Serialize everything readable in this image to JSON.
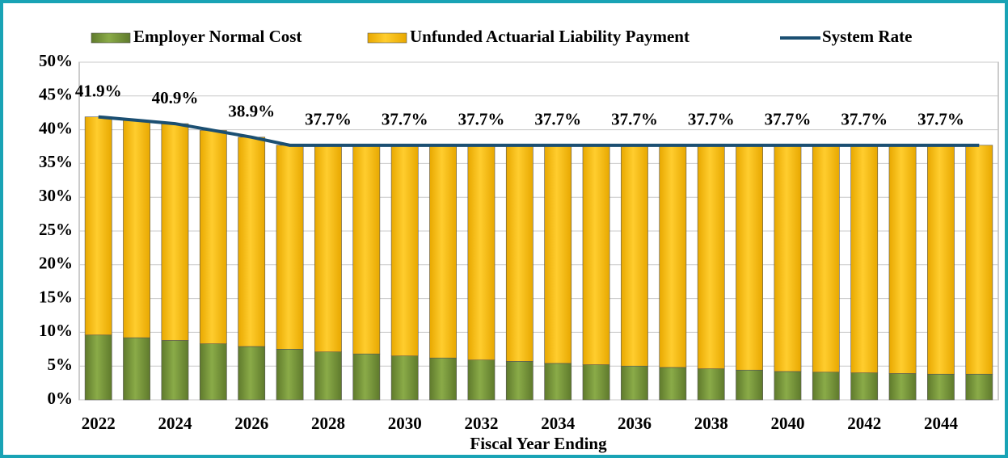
{
  "chart_data": {
    "type": "bar",
    "stacked": true,
    "xlabel": "Fiscal Year Ending",
    "categories": [
      "2022",
      null,
      "2024",
      null,
      "2026",
      null,
      "2028",
      null,
      "2030",
      null,
      "2032",
      null,
      "2034",
      null,
      "2036",
      null,
      "2038",
      null,
      "2040",
      null,
      "2042",
      null,
      "2044",
      null
    ],
    "series": [
      {
        "name": "Employer Normal Cost",
        "type": "bar",
        "color": "#77933c",
        "values": [
          9.6,
          9.2,
          8.8,
          8.3,
          7.9,
          7.5,
          7.1,
          6.8,
          6.5,
          6.2,
          5.9,
          5.7,
          5.4,
          5.2,
          5.0,
          4.8,
          4.6,
          4.4,
          4.2,
          4.1,
          4.0,
          3.9,
          3.8,
          3.8
        ]
      },
      {
        "name": "Unfunded Actuarial Liability Payment",
        "type": "bar",
        "color": "#ffc000",
        "values": [
          32.3,
          32.2,
          32.1,
          31.6,
          31.0,
          30.2,
          30.6,
          30.9,
          31.2,
          31.5,
          31.8,
          32.0,
          32.3,
          32.5,
          32.7,
          32.9,
          33.1,
          33.3,
          33.5,
          33.6,
          33.7,
          33.8,
          33.9,
          33.9
        ]
      },
      {
        "name": "System Rate",
        "type": "line",
        "color": "#1b4f72",
        "values": [
          41.9,
          41.4,
          40.9,
          39.9,
          38.9,
          37.7,
          37.7,
          37.7,
          37.7,
          37.7,
          37.7,
          37.7,
          37.7,
          37.7,
          37.7,
          37.7,
          37.7,
          37.7,
          37.7,
          37.7,
          37.7,
          37.7,
          37.7,
          37.7
        ],
        "value_labels": [
          "41.9%",
          null,
          "40.9%",
          null,
          "38.9%",
          null,
          "37.7%",
          null,
          "37.7%",
          null,
          "37.7%",
          null,
          "37.7%",
          null,
          "37.7%",
          null,
          "37.7%",
          null,
          "37.7%",
          null,
          "37.7%",
          null,
          "37.7%",
          null
        ]
      }
    ],
    "ylim": [
      0,
      50
    ],
    "yticks": [
      {
        "value": 0,
        "label": "0%"
      },
      {
        "value": 5,
        "label": "5%"
      },
      {
        "value": 10,
        "label": "10%"
      },
      {
        "value": 15,
        "label": "15%"
      },
      {
        "value": 20,
        "label": "20%"
      },
      {
        "value": 25,
        "label": "25%"
      },
      {
        "value": 30,
        "label": "30%"
      },
      {
        "value": 35,
        "label": "35%"
      },
      {
        "value": 40,
        "label": "40%"
      },
      {
        "value": 45,
        "label": "45%"
      },
      {
        "value": 50,
        "label": "50%"
      }
    ],
    "grid": true,
    "legend": "top"
  }
}
